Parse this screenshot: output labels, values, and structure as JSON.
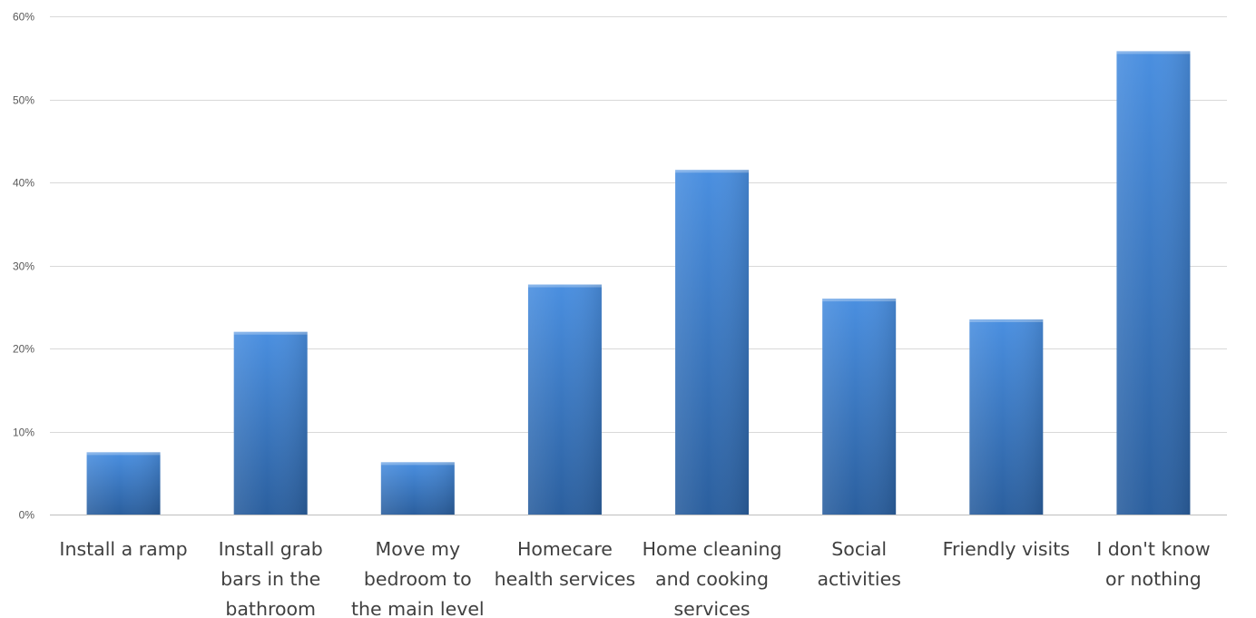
{
  "chart_data": {
    "type": "bar",
    "title": "",
    "xlabel": "",
    "ylabel": "",
    "ylim": [
      0,
      60
    ],
    "y_ticks": [
      0,
      10,
      20,
      30,
      40,
      50,
      60
    ],
    "y_tick_labels": [
      "0%",
      "10%",
      "20%",
      "30%",
      "40%",
      "50%",
      "60%"
    ],
    "grid": true,
    "legend": "none",
    "categories": [
      [
        "Install a ramp"
      ],
      [
        "Install grab",
        "bars in the",
        "bathroom"
      ],
      [
        "Move my",
        "bedroom to",
        "the main level"
      ],
      [
        "Homecare",
        "health services"
      ],
      [
        "Home cleaning",
        "and cooking",
        "services"
      ],
      [
        "Social",
        "activities"
      ],
      [
        "Friendly visits"
      ],
      [
        "I don't know",
        "or nothing"
      ]
    ],
    "values": [
      7.5,
      22,
      6.3,
      27.7,
      41.5,
      26,
      23.5,
      55.8
    ],
    "bar_color_top": "#4a8fe0",
    "bar_color_bottom": "#2b5f9e"
  }
}
